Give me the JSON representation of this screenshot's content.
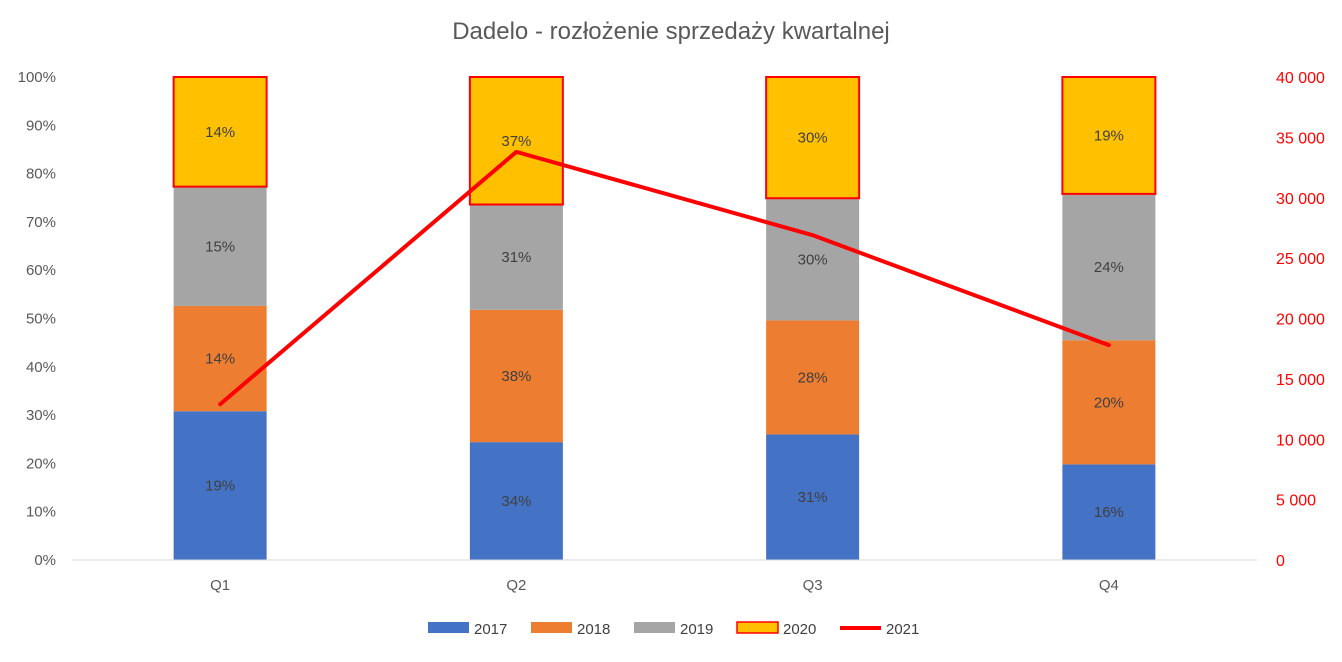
{
  "chart_data": {
    "type": "bar",
    "subtype": "stacked-percent-with-line",
    "title": "Dadelo - rozłożenie sprzedaży kwartalnej",
    "categories": [
      "Q1",
      "Q2",
      "Q3",
      "Q4"
    ],
    "y_axis_left": {
      "ticks": [
        "0%",
        "10%",
        "20%",
        "30%",
        "40%",
        "50%",
        "60%",
        "70%",
        "80%",
        "90%",
        "100%"
      ],
      "range": [
        0,
        100
      ]
    },
    "y_axis_right": {
      "ticks": [
        "0",
        "5 000",
        "10 000",
        "15 000",
        "20 000",
        "25 000",
        "30 000",
        "35 000",
        "40 000"
      ],
      "range": [
        0,
        40000
      ],
      "color": "#ff0000"
    },
    "series": [
      {
        "name": "2017",
        "type": "bar",
        "color": "#4472c4",
        "heights": [
          30.8,
          24.4,
          26.0,
          19.8
        ],
        "labels": [
          "19%",
          "34%",
          "31%",
          "16%"
        ]
      },
      {
        "name": "2018",
        "type": "bar",
        "color": "#ed7d31",
        "heights": [
          21.8,
          27.4,
          23.6,
          25.7
        ],
        "labels": [
          "14%",
          "38%",
          "28%",
          "20%"
        ]
      },
      {
        "name": "2019",
        "type": "bar",
        "color": "#a5a5a5",
        "heights": [
          24.7,
          21.8,
          25.3,
          30.3
        ],
        "labels": [
          "15%",
          "31%",
          "30%",
          "24%"
        ]
      },
      {
        "name": "2020",
        "type": "bar",
        "color": "#ffc000",
        "border": "#ff0000",
        "heights": [
          22.7,
          26.4,
          25.1,
          24.2
        ],
        "labels": [
          "14%",
          "37%",
          "30%",
          "19%"
        ]
      },
      {
        "name": "2021",
        "type": "line",
        "color": "#ff0000",
        "axis": "right",
        "values": [
          12900,
          33800,
          26900,
          17800
        ]
      }
    ],
    "legend": {
      "position": "bottom"
    },
    "grid": {
      "horizontal": false
    }
  }
}
